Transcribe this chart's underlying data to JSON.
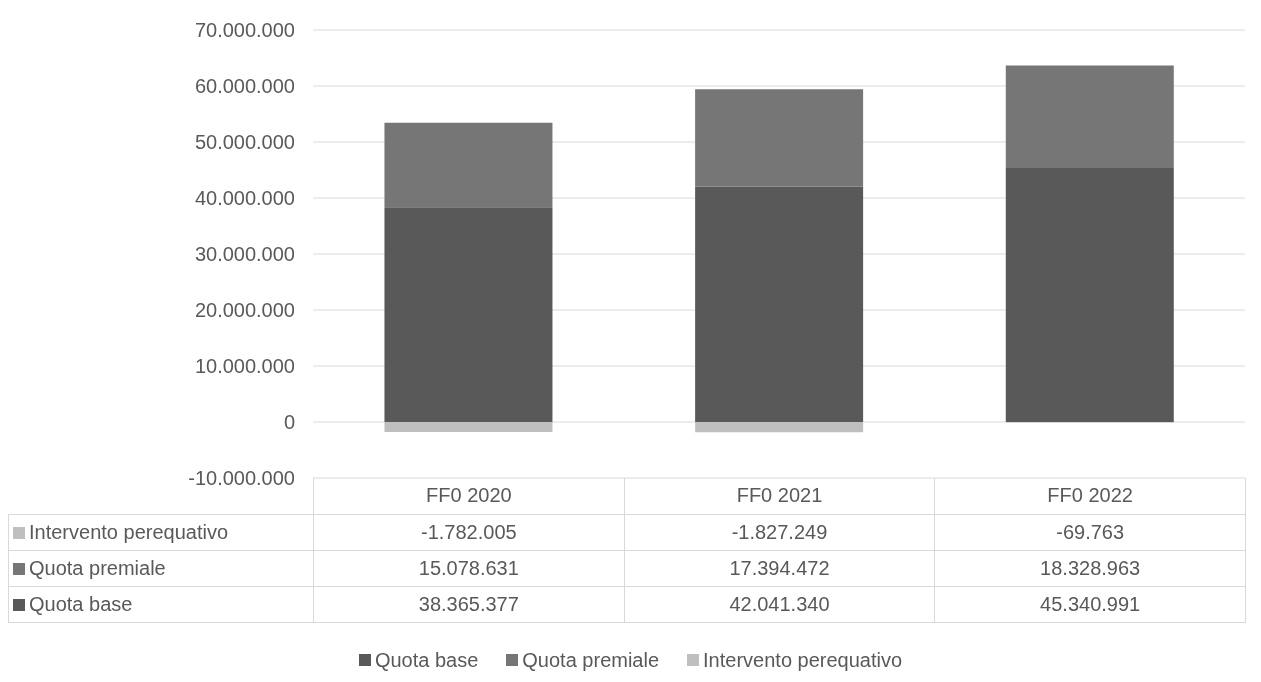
{
  "chart_data": {
    "type": "bar",
    "stacked": true,
    "categories": [
      "FF0 2020",
      "FF0 2021",
      "FF0 2022"
    ],
    "series": [
      {
        "name": "Quota base",
        "color": "#595959",
        "values": [
          38365377,
          42041340,
          45340991
        ],
        "value_labels": [
          "38.365.377",
          "42.041.340",
          "45.340.991"
        ]
      },
      {
        "name": "Quota premiale",
        "color": "#767676",
        "values": [
          15078631,
          17394472,
          18328963
        ],
        "value_labels": [
          "15.078.631",
          "17.394.472",
          "18.328.963"
        ]
      },
      {
        "name": "Intervento perequativo",
        "color": "#bfbfbf",
        "values": [
          -1782005,
          -1827249,
          -69763
        ],
        "value_labels": [
          "-1.782.005",
          "-1.827.249",
          "-69.763"
        ]
      }
    ],
    "ylim": [
      -10000000,
      70000000
    ],
    "yticks": [
      {
        "value": -10000000,
        "label": "-10.000.000"
      },
      {
        "value": 0,
        "label": "0"
      },
      {
        "value": 10000000,
        "label": "10.000.000"
      },
      {
        "value": 20000000,
        "label": "20.000.000"
      },
      {
        "value": 30000000,
        "label": "30.000.000"
      },
      {
        "value": 40000000,
        "label": "40.000.000"
      },
      {
        "value": 50000000,
        "label": "50.000.000"
      },
      {
        "value": 60000000,
        "label": "60.000.000"
      },
      {
        "value": 70000000,
        "label": "70.000.000"
      }
    ],
    "grid": "y",
    "legend": "bottom"
  }
}
